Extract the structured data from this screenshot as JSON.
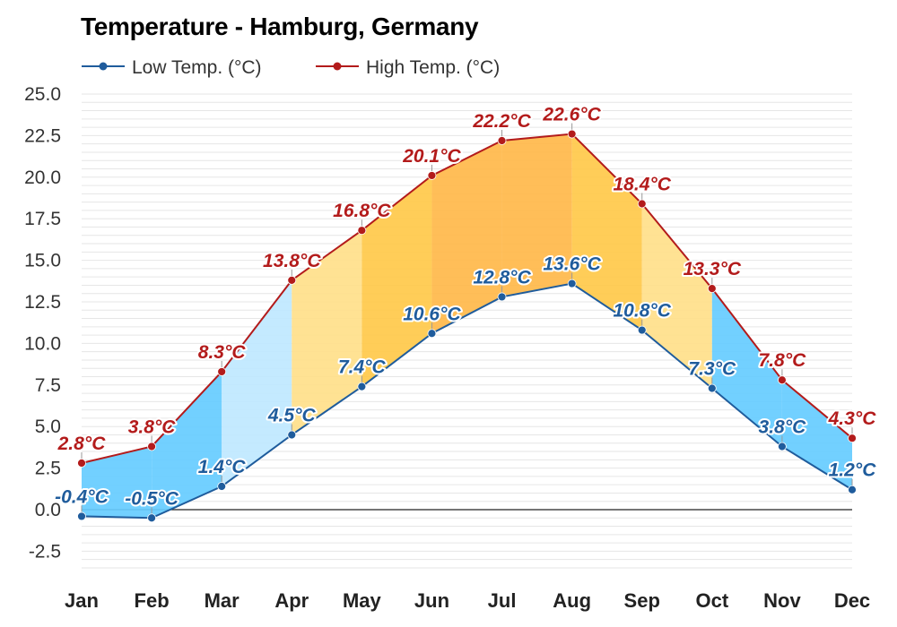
{
  "colors": {
    "low": "#1f5c9c",
    "high": "#b31b1b"
  },
  "chart_data": {
    "type": "line",
    "title": "Temperature - Hamburg, Germany",
    "categories": [
      "Jan",
      "Feb",
      "Mar",
      "Apr",
      "May",
      "Jun",
      "Jul",
      "Aug",
      "Sep",
      "Oct",
      "Nov",
      "Dec"
    ],
    "series": [
      {
        "name": "Low Temp. (°C)",
        "values": [
          -0.4,
          -0.5,
          1.4,
          4.5,
          7.4,
          10.6,
          12.8,
          13.6,
          10.8,
          7.3,
          3.8,
          1.2
        ]
      },
      {
        "name": "High Temp. (°C)",
        "values": [
          2.8,
          3.8,
          8.3,
          13.8,
          16.8,
          20.1,
          22.2,
          22.6,
          18.4,
          13.3,
          7.8,
          4.3
        ]
      }
    ],
    "data_labels": {
      "low": [
        "-0.4°C",
        "-0.5°C",
        "1.4°C",
        "4.5°C",
        "7.4°C",
        "10.6°C",
        "12.8°C",
        "13.6°C",
        "10.8°C",
        "7.3°C",
        "3.8°C",
        "1.2°C"
      ],
      "high": [
        "2.8°C",
        "3.8°C",
        "8.3°C",
        "13.8°C",
        "16.8°C",
        "20.1°C",
        "22.2°C",
        "22.6°C",
        "18.4°C",
        "13.3°C",
        "7.8°C",
        "4.3°C"
      ]
    },
    "yticks": [
      "25.0",
      "22.5",
      "20.0",
      "17.5",
      "15.0",
      "12.5",
      "10.0",
      "7.5",
      "5.0",
      "2.5",
      "0.0",
      "-2.5"
    ],
    "ylim": [
      -3.5,
      25
    ],
    "grid": true,
    "legend": "top-left",
    "band_fills": [
      "#66ccff",
      "#66ccff",
      "#bfe8ff",
      "#ffe08a",
      "#ffc94a",
      "#ffb84a",
      "#ffb84a",
      "#ffc94a",
      "#ffe08a",
      "#66ccff",
      "#66ccff",
      "#3fc0ff"
    ]
  }
}
